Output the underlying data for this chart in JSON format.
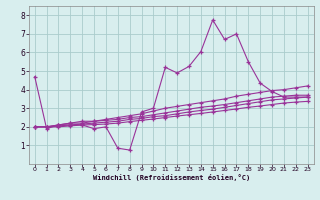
{
  "x": [
    0,
    1,
    2,
    3,
    4,
    5,
    6,
    7,
    8,
    9,
    10,
    11,
    12,
    13,
    14,
    15,
    16,
    17,
    18,
    19,
    20,
    21,
    22,
    23
  ],
  "line1": [
    4.7,
    1.9,
    2.1,
    2.1,
    2.1,
    1.9,
    2.0,
    0.85,
    0.75,
    2.8,
    3.0,
    5.2,
    4.9,
    5.25,
    6.05,
    7.75,
    6.7,
    7.0,
    5.5,
    4.35,
    3.9,
    3.6,
    3.6,
    3.6
  ],
  "line2": [
    2.0,
    2.0,
    2.1,
    2.2,
    2.3,
    2.3,
    2.4,
    2.5,
    2.6,
    2.7,
    2.85,
    3.0,
    3.1,
    3.2,
    3.3,
    3.4,
    3.5,
    3.65,
    3.75,
    3.85,
    3.95,
    4.0,
    4.1,
    4.2
  ],
  "line3": [
    2.0,
    2.0,
    2.1,
    2.2,
    2.2,
    2.3,
    2.35,
    2.4,
    2.5,
    2.55,
    2.65,
    2.75,
    2.85,
    2.95,
    3.05,
    3.12,
    3.2,
    3.3,
    3.4,
    3.5,
    3.6,
    3.65,
    3.7,
    3.7
  ],
  "line4": [
    2.0,
    2.0,
    2.05,
    2.1,
    2.15,
    2.2,
    2.25,
    2.3,
    2.4,
    2.45,
    2.55,
    2.6,
    2.7,
    2.8,
    2.88,
    2.95,
    3.05,
    3.15,
    3.25,
    3.35,
    3.45,
    3.5,
    3.55,
    3.6
  ],
  "line5": [
    2.0,
    2.0,
    2.0,
    2.05,
    2.1,
    2.12,
    2.15,
    2.2,
    2.28,
    2.35,
    2.42,
    2.5,
    2.58,
    2.65,
    2.72,
    2.8,
    2.88,
    2.96,
    3.05,
    3.12,
    3.2,
    3.28,
    3.33,
    3.37
  ],
  "color": "#993399",
  "bg_color": "#d8eeee",
  "grid_color": "#aacccc",
  "xlabel": "Windchill (Refroidissement éolien,°C)",
  "ylim": [
    0,
    8.5
  ],
  "xlim": [
    -0.5,
    23.5
  ],
  "yticks": [
    1,
    2,
    3,
    4,
    5,
    6,
    7,
    8
  ],
  "xticks": [
    0,
    1,
    2,
    3,
    4,
    5,
    6,
    7,
    8,
    9,
    10,
    11,
    12,
    13,
    14,
    15,
    16,
    17,
    18,
    19,
    20,
    21,
    22,
    23
  ]
}
